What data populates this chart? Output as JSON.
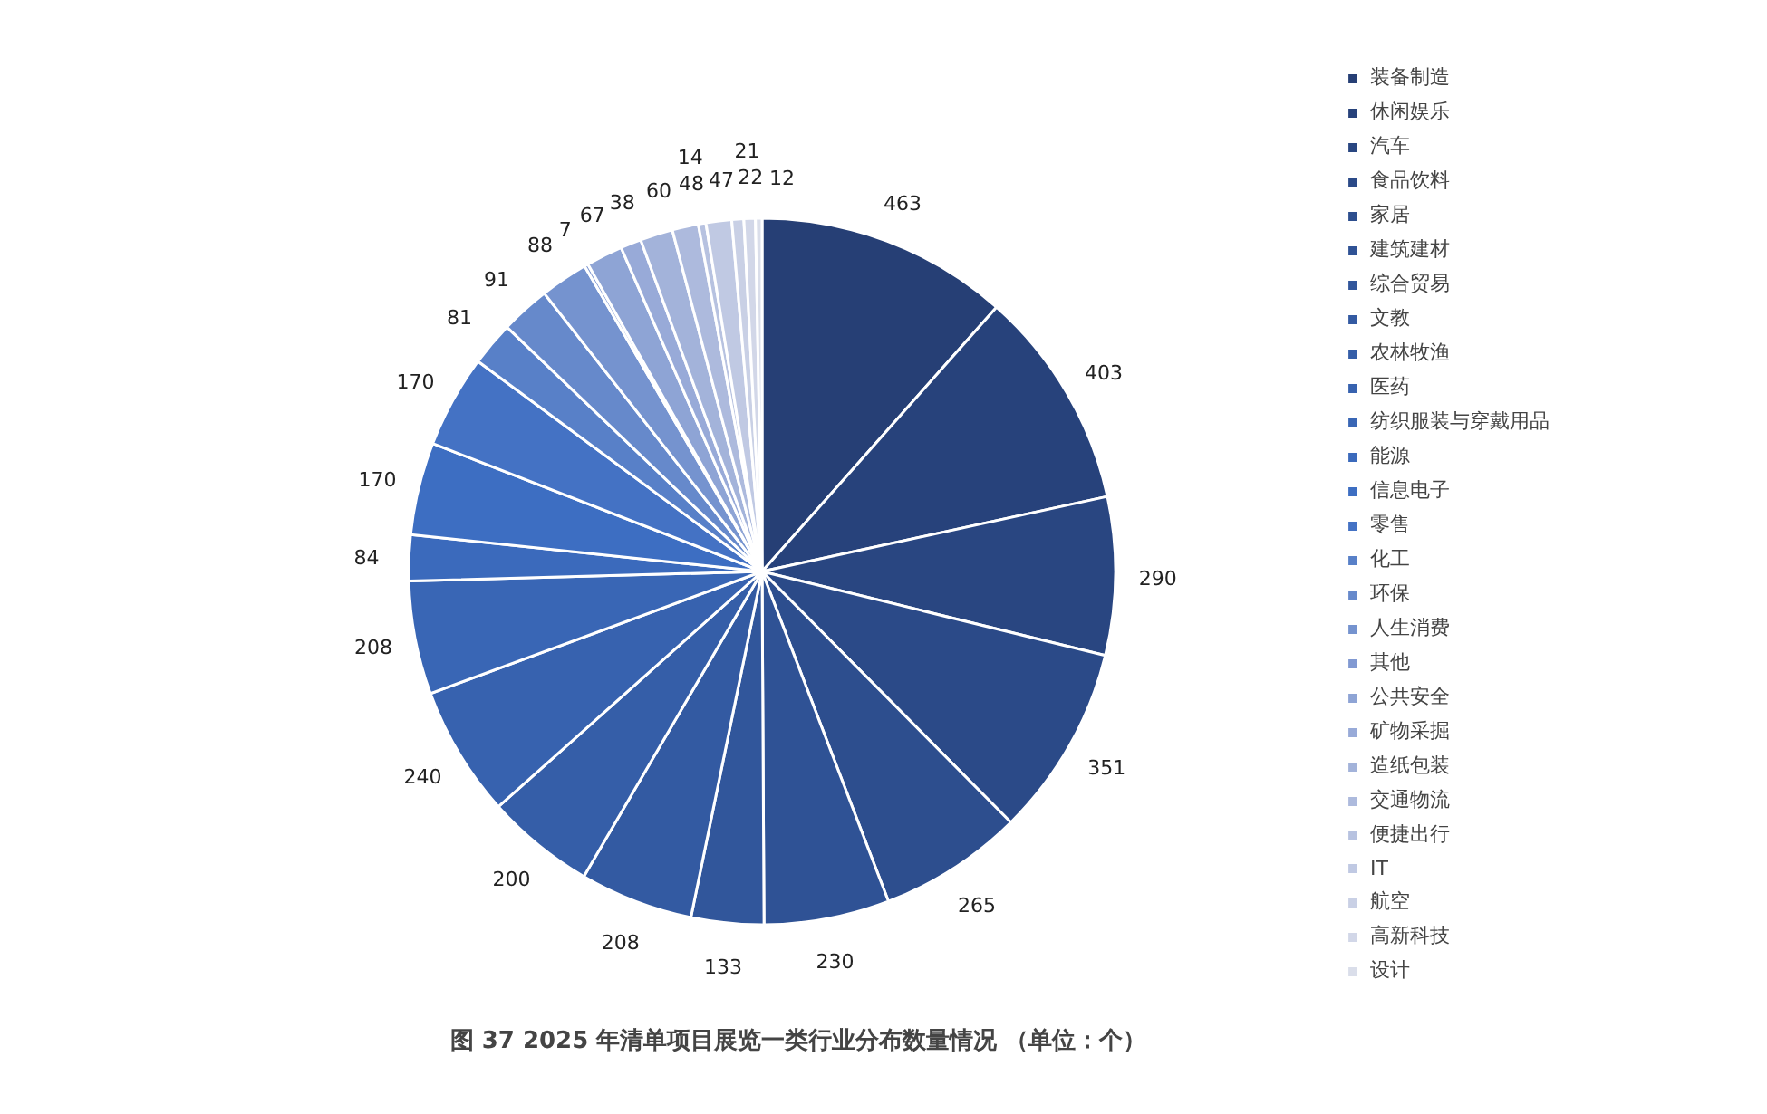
{
  "chart_data": {
    "type": "pie",
    "title": "图 37 2025 年清单项目展览一类行业分布数量情况 （单位：个）",
    "categories": [
      "装备制造",
      "休闲娱乐",
      "汽车",
      "食品饮料",
      "家居",
      "建筑建材",
      "综合贸易",
      "文教",
      "农林牧渔",
      "医药",
      "纺织服装与穿戴用品",
      "能源",
      "信息电子",
      "零售",
      "化工",
      "环保",
      "人生消费",
      "其他",
      "公共安全",
      "矿物采掘",
      "造纸包装",
      "交通物流",
      "便捷出行",
      "IT",
      "航空",
      "高新科技",
      "设计"
    ],
    "values": [
      463,
      403,
      290,
      351,
      265,
      230,
      133,
      208,
      200,
      240,
      208,
      84,
      170,
      170,
      81,
      91,
      88,
      7,
      67,
      38,
      60,
      48,
      14,
      47,
      22,
      21,
      12
    ],
    "colors": [
      "#263f75",
      "#27427b",
      "#294681",
      "#2b4a88",
      "#2d4e8e",
      "#2f5295",
      "#31569b",
      "#335aa2",
      "#355ea8",
      "#3762af",
      "#3966b5",
      "#3b6abc",
      "#3d6ec2",
      "#4472c4",
      "#5880c8",
      "#6689cb",
      "#7593cf",
      "#8199d2",
      "#8ea4d5",
      "#98aad8",
      "#a3b3da",
      "#adbadd",
      "#b7c2e0",
      "#c0c9e3",
      "#c9d0e5",
      "#d2d7e8",
      "#dadeea"
    ],
    "data_labels": true,
    "legend": "right"
  }
}
